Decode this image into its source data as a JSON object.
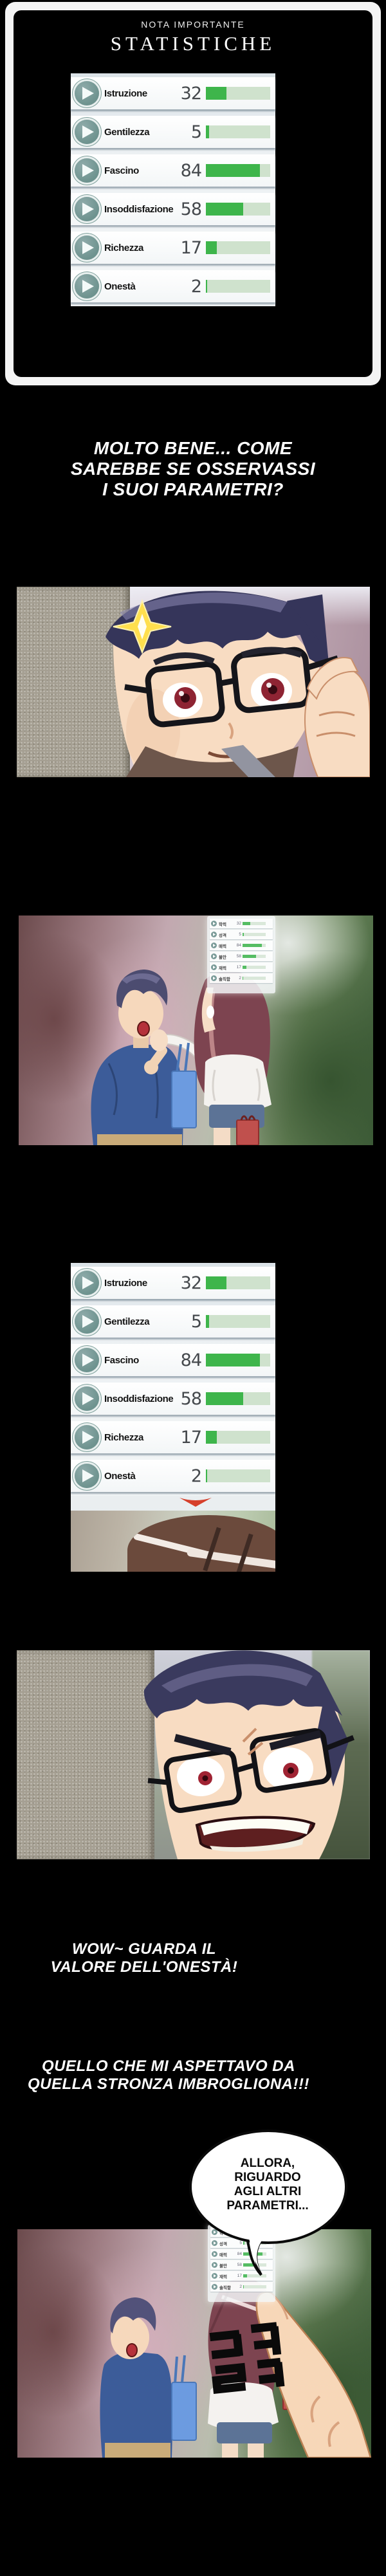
{
  "note": {
    "kicker": "NOTA IMPORTANTE",
    "title": "STATISTICHE"
  },
  "stats": {
    "rows": [
      {
        "label": "Istruzione",
        "value": 32,
        "max": 100
      },
      {
        "label": "Gentilezza",
        "value": 5,
        "max": 100
      },
      {
        "label": "Fascino",
        "value": 84,
        "max": 100
      },
      {
        "label": "Insoddisfazione",
        "value": 58,
        "max": 100
      },
      {
        "label": "Richezza",
        "value": 17,
        "max": 100
      },
      {
        "label": "Onestà",
        "value": 2,
        "max": 100
      }
    ]
  },
  "mini_stats": {
    "rows": [
      {
        "label": "학력",
        "value": 32
      },
      {
        "label": "성격",
        "value": 5
      },
      {
        "label": "매력",
        "value": 84
      },
      {
        "label": "불만",
        "value": 58
      },
      {
        "label": "재력",
        "value": 17
      },
      {
        "label": "솔직함",
        "value": 2
      }
    ]
  },
  "narration": {
    "n1_lines": [
      "MOLTO BENE... COME",
      "SAREBBE SE OSSERVASSI",
      "I SUOI PARAMETRI?"
    ],
    "n2_lines": [
      "WOW~ GUARDA IL",
      "VALORE DELL'ONESTÀ!"
    ],
    "n3_lines": [
      "QUELLO CHE MI ASPETTAVO DA",
      "QUELLA STRONZA IMBROGLIONA!!!"
    ]
  },
  "bubble": {
    "lines": [
      "ALLORA,",
      "RIGUARDO",
      "AGLI ALTRI",
      "PARAMETRI..."
    ]
  },
  "sfx": {
    "text": "클락"
  },
  "colors": {
    "bar_fill": "#3eb54b",
    "bar_track": "#cfe2cd",
    "play_button": "#6e938f",
    "chevron_red": "#d6402b",
    "page_bg": "#000000"
  }
}
